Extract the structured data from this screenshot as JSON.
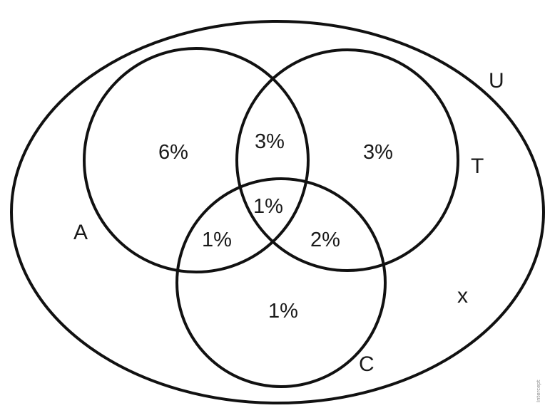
{
  "diagram": {
    "sets": {
      "universe": "U",
      "a": "A",
      "t": "T",
      "c": "C",
      "outside": "x"
    },
    "regions": {
      "a_only": "6%",
      "t_only": "3%",
      "c_only": "1%",
      "a_and_t": "3%",
      "a_and_c": "1%",
      "t_and_c": "2%",
      "a_t_c": "1%"
    },
    "watermark": "Intercept"
  }
}
